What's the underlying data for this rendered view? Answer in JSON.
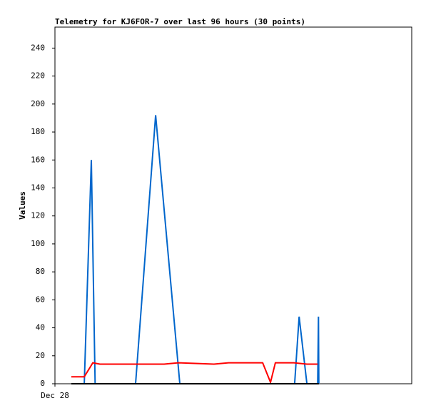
{
  "chart_data": {
    "type": "line",
    "title": "Telemetry for KJ6FOR-7 over last 96 hours (30 points)",
    "y_label": "Values",
    "xlim": [
      0,
      96
    ],
    "xticks": [
      {
        "value": 0,
        "label": "Dec 28"
      }
    ],
    "ylim": [
      0,
      255
    ],
    "yticks": [
      0,
      20,
      40,
      60,
      80,
      100,
      120,
      140,
      160,
      180,
      200,
      220,
      240
    ],
    "grid": false,
    "series": [
      {
        "color": "#0066cc",
        "x": [
          7.9,
          9.8,
          10.8,
          21.7,
          27.1,
          33.6,
          64.5,
          65.7,
          67.8,
          70.7,
          70.9,
          71.0
        ],
        "values": [
          0,
          160,
          0,
          0,
          192,
          0,
          0,
          48,
          0,
          0,
          48,
          0
        ]
      },
      {
        "color": "#ff0000",
        "x": [
          4.4,
          7.9,
          10.2,
          12.1,
          29.4,
          33.2,
          42.8,
          46.7,
          55.9,
          58.0,
          59.3,
          64.3,
          67.8,
          70.7
        ],
        "values": [
          5,
          5,
          15,
          14,
          14,
          15,
          14,
          15,
          15,
          1,
          15,
          15,
          14,
          14
        ]
      },
      {
        "color": "#000000",
        "x": [
          4.4,
          71.0
        ],
        "values": [
          0,
          0
        ]
      }
    ]
  }
}
